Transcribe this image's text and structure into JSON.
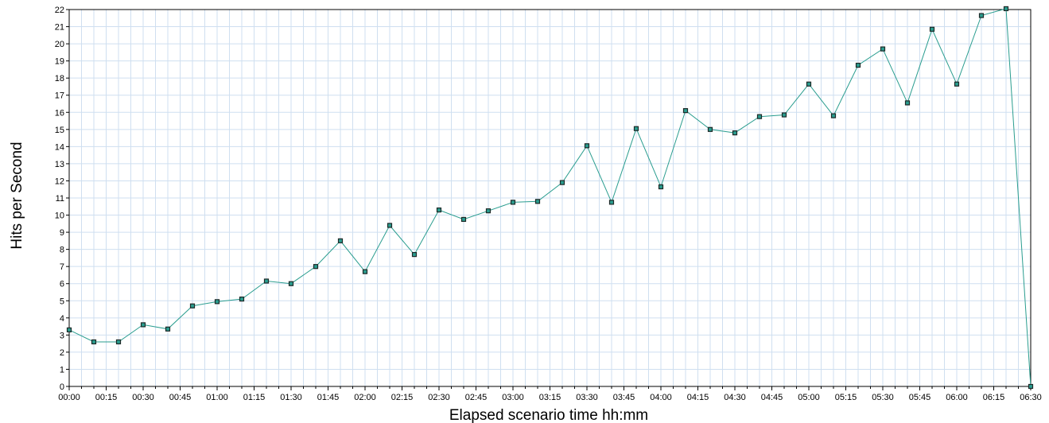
{
  "chart_data": {
    "type": "line",
    "title": "",
    "xlabel": "Elapsed scenario time hh:mm",
    "ylabel": "Hits per Second",
    "ylim": [
      0,
      22
    ],
    "xlim_minutes": [
      0,
      390
    ],
    "grid": true,
    "legend": "none",
    "x_tick_labels": [
      "00:00",
      "00:15",
      "00:30",
      "00:45",
      "01:00",
      "01:15",
      "01:30",
      "01:45",
      "02:00",
      "02:15",
      "02:30",
      "02:45",
      "03:00",
      "03:15",
      "03:30",
      "03:45",
      "04:00",
      "04:15",
      "04:30",
      "04:45",
      "05:00",
      "05:15",
      "05:30",
      "05:45",
      "06:00",
      "06:15",
      "06:30"
    ],
    "y_tick_labels": [
      "0",
      "1",
      "2",
      "3",
      "4",
      "5",
      "6",
      "7",
      "8",
      "9",
      "10",
      "11",
      "12",
      "13",
      "14",
      "15",
      "16",
      "17",
      "18",
      "19",
      "20",
      "21",
      "22"
    ],
    "series": [
      {
        "color": "#2a9d8f",
        "marker_color": "#1e2a28",
        "x": [
          "00:00",
          "00:10",
          "00:20",
          "00:30",
          "00:40",
          "00:50",
          "01:00",
          "01:10",
          "01:20",
          "01:30",
          "01:40",
          "01:50",
          "02:00",
          "02:10",
          "02:20",
          "02:30",
          "02:40",
          "02:50",
          "03:00",
          "03:10",
          "03:20",
          "03:30",
          "03:40",
          "03:50",
          "04:00",
          "04:10",
          "04:20",
          "04:30",
          "04:40",
          "04:50",
          "05:00",
          "05:10",
          "05:20",
          "05:30",
          "05:40",
          "05:50",
          "06:00",
          "06:10",
          "06:20",
          "06:30"
        ],
        "values": [
          3.3,
          2.6,
          2.6,
          3.6,
          3.35,
          4.7,
          4.95,
          5.1,
          6.15,
          6.0,
          7.0,
          8.5,
          6.7,
          9.4,
          7.7,
          10.3,
          9.75,
          10.25,
          10.75,
          10.8,
          11.9,
          14.05,
          10.75,
          15.05,
          11.65,
          16.1,
          15.0,
          14.8,
          15.75,
          15.85,
          17.65,
          15.8,
          18.75,
          19.7,
          16.55,
          20.85,
          17.65,
          21.65,
          22.05,
          0.0
        ]
      }
    ]
  }
}
